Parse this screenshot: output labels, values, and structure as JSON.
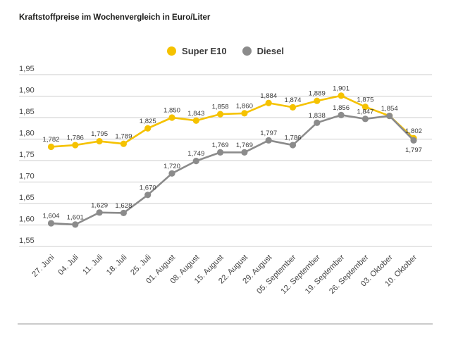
{
  "title": "Kraftstoffpreise im Wochenvergleich in Euro/Liter",
  "legend": {
    "items": [
      {
        "label": "Super E10",
        "color": "#F5C200"
      },
      {
        "label": "Diesel",
        "color": "#8B8B8B"
      }
    ]
  },
  "chart_data": {
    "type": "line",
    "title": "Kraftstoffpreise im Wochenvergleich in Euro/Liter",
    "unit": "Euro/Liter",
    "grid": true,
    "legend_position": "top-center",
    "categories": [
      "27. Juni",
      "04. Juli",
      "11. Juli",
      "18. Juli",
      "25. Juli",
      "01. August",
      "08. August",
      "15. August",
      "22. August",
      "29. August",
      "05. September",
      "12. September",
      "19. September",
      "26. September",
      "03. Oktober",
      "10. Oktober"
    ],
    "series": [
      {
        "name": "Super E10",
        "color": "#F5C200",
        "values": [
          1.782,
          1.786,
          1.795,
          1.789,
          1.825,
          1.85,
          1.843,
          1.858,
          1.86,
          1.884,
          1.874,
          1.889,
          1.901,
          1.875,
          1.854,
          1.802
        ],
        "point_labels": [
          "1,782",
          "1,786",
          "1,795",
          "1,789",
          "1,825",
          "1,850",
          "1,843",
          "1,858",
          "1,860",
          "1,884",
          "1,874",
          "1,889",
          "1,901",
          "1,875",
          null,
          "1,802"
        ],
        "label_positions": [
          "above",
          "above",
          "above",
          "above",
          "above",
          "above",
          "above",
          "above",
          "above",
          "above",
          "above",
          "above",
          "above",
          "above",
          "above",
          "above"
        ]
      },
      {
        "name": "Diesel",
        "color": "#8B8B8B",
        "values": [
          1.604,
          1.601,
          1.629,
          1.628,
          1.67,
          1.72,
          1.749,
          1.769,
          1.769,
          1.797,
          1.786,
          1.838,
          1.856,
          1.847,
          1.854,
          1.797
        ],
        "point_labels": [
          "1,604",
          "1,601",
          "1,629",
          "1,628",
          "1,670",
          "1,720",
          "1,749",
          "1,769",
          "1,769",
          "1,797",
          "1,786",
          "1,838",
          "1,856",
          "1,847",
          "1,854",
          "1,797"
        ],
        "label_positions": [
          "above",
          "above",
          "above",
          "above",
          "above",
          "above",
          "above",
          "above",
          "above",
          "above",
          "above",
          "above",
          "above",
          "above",
          "above",
          "below"
        ]
      }
    ],
    "y_axis": {
      "min": 1.55,
      "max": 1.95,
      "step": 0.05,
      "tick_labels": [
        "1,95",
        "1,90",
        "1,85",
        "1,80",
        "1,75",
        "1,70",
        "1,65",
        "1,60",
        "1,55"
      ]
    },
    "ylim": [
      1.55,
      1.95
    ]
  },
  "colors": {
    "background": "#FFFFFF",
    "grid": "#CCCCCC",
    "axis_text": "#464646",
    "point_label_text": "#3D3D3D",
    "title_text": "#1D1D1B",
    "separator": "#CBCBCB"
  }
}
